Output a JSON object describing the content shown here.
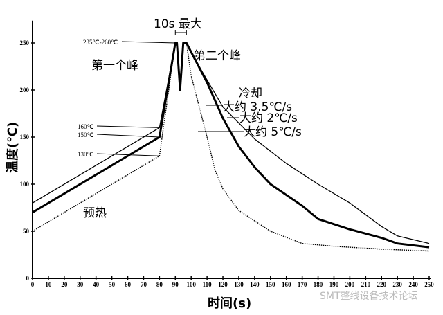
{
  "chart_data": {
    "type": "line",
    "xlabel": "时间(s)",
    "ylabel": "温度(℃)",
    "xlim": [
      0,
      250
    ],
    "ylim": [
      0,
      270
    ],
    "xticks": [
      0,
      10,
      20,
      30,
      40,
      50,
      60,
      70,
      80,
      90,
      100,
      110,
      120,
      130,
      140,
      150,
      160,
      170,
      180,
      190,
      200,
      210,
      220,
      230,
      240,
      250
    ],
    "yticks": [
      0,
      50,
      100,
      150,
      200,
      250
    ],
    "grid": false,
    "series": [
      {
        "style": "thin-solid",
        "color": "#000000",
        "x": [
          0,
          80,
          90,
          91,
          93,
          95,
          97,
          105,
          120,
          140,
          160,
          180,
          200,
          220,
          230,
          250
        ],
        "y": [
          80,
          160,
          250,
          250,
          200,
          250,
          250,
          225,
          182,
          148,
          122,
          100,
          80,
          55,
          45,
          37
        ]
      },
      {
        "style": "thick-solid",
        "color": "#000000",
        "x": [
          0,
          80,
          90,
          91,
          93,
          95,
          97,
          110,
          120,
          130,
          140,
          150,
          170,
          180,
          200,
          220,
          230,
          250
        ],
        "y": [
          70,
          150,
          250,
          250,
          200,
          250,
          250,
          208,
          170,
          140,
          118,
          100,
          77,
          63,
          52,
          43,
          37,
          33
        ]
      },
      {
        "style": "dotted",
        "color": "#000000",
        "x": [
          0,
          80,
          90,
          91,
          93,
          95,
          97,
          100,
          110,
          115,
          120,
          130,
          150,
          170,
          190,
          220,
          250
        ],
        "y": [
          50,
          130,
          250,
          250,
          200,
          250,
          250,
          215,
          150,
          115,
          95,
          72,
          50,
          37,
          34,
          31,
          29
        ]
      }
    ],
    "annotations": {
      "max_time": "10s 最大",
      "peak_range": "235℃-260℃",
      "first_peak": "第一个峰",
      "second_peak": "第二个峰",
      "cooling": "冷却",
      "rate_35": "大约 3.5℃/s",
      "rate_2": "大约 2℃/s",
      "rate_5": "大约 5℃/s",
      "t160": "160℃",
      "t150": "150℃",
      "t130": "130℃",
      "preheat": "预热"
    }
  },
  "watermark": "SMT整线设备技术论坛"
}
